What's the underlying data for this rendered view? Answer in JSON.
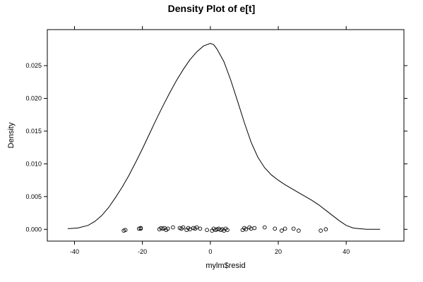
{
  "chart_data": {
    "type": "line",
    "title": "Density Plot of e[t]",
    "xlabel": "mylm$resid",
    "ylabel": "Density",
    "xlim": [
      -48,
      57
    ],
    "ylim": [
      -0.0018,
      0.0305
    ],
    "x_ticks": [
      -40,
      -20,
      0,
      20,
      40
    ],
    "x_tick_labels": [
      "-40",
      "-20",
      "0",
      "20",
      "40"
    ],
    "y_ticks": [
      0.0,
      0.005,
      0.01,
      0.015,
      0.02,
      0.025
    ],
    "y_tick_labels": [
      "0.000",
      "0.005",
      "0.010",
      "0.015",
      "0.020",
      "0.025"
    ],
    "grid": false,
    "series": [
      {
        "values_x": [
          -42,
          -39,
          -36,
          -34,
          -32,
          -30,
          -28,
          -26,
          -24,
          -22,
          -20,
          -18,
          -16,
          -14,
          -12,
          -10,
          -8,
          -6,
          -4,
          -2,
          0,
          1,
          2,
          4,
          6,
          8,
          10,
          12,
          14,
          16,
          18,
          20,
          22,
          24,
          26,
          28,
          30,
          32,
          34,
          36,
          38,
          40,
          42,
          44,
          46,
          48,
          50
        ],
        "values_y": [
          0.0001,
          0.0002,
          0.0006,
          0.0012,
          0.0021,
          0.0033,
          0.0048,
          0.0064,
          0.0082,
          0.0102,
          0.0123,
          0.0145,
          0.0167,
          0.0188,
          0.0208,
          0.0227,
          0.0244,
          0.0259,
          0.0271,
          0.028,
          0.0284,
          0.0282,
          0.0275,
          0.0256,
          0.0228,
          0.0196,
          0.0163,
          0.0133,
          0.011,
          0.0094,
          0.0083,
          0.0075,
          0.0068,
          0.0062,
          0.0056,
          0.005,
          0.0044,
          0.0037,
          0.0029,
          0.0021,
          0.0013,
          0.0006,
          0.0002,
          0.0001,
          0.0,
          0.0,
          0.0
        ]
      }
    ],
    "rug": {
      "x": [
        -25.5,
        -25,
        -21,
        -20.5,
        -20.5,
        -15,
        -14.5,
        -14,
        -13.5,
        -13,
        -12.5,
        -11,
        -9,
        -8.5,
        -8,
        -7,
        -6.5,
        -6,
        -5,
        -4.5,
        -4,
        -3,
        -1,
        0.5,
        1,
        1.5,
        2,
        2.5,
        3,
        3.5,
        4,
        4.5,
        5,
        9.5,
        10,
        10.5,
        11.5,
        12,
        13,
        16,
        19,
        21,
        22,
        24.5,
        26,
        32.5,
        34
      ],
      "y": [
        -0.0002,
        -0.0001,
        0.0001,
        0.0002,
        0.0001,
        0.0,
        0.0002,
        0.0001,
        0.0002,
        -0.0001,
        0.0001,
        0.0003,
        0.0002,
        0.0001,
        0.0003,
        -0.0001,
        0.0002,
        0.0,
        0.0002,
        0.0001,
        0.0003,
        0.0001,
        -0.0001,
        -0.0002,
        0.0001,
        -0.0001,
        0.0,
        0.0001,
        -0.0001,
        0.0,
        -0.0002,
        0.0001,
        -0.0001,
        -0.0001,
        0.0002,
        0.0,
        0.0003,
        0.0001,
        0.0002,
        0.0003,
        0.0001,
        -0.0002,
        0.0001,
        0.0001,
        -0.0002,
        -0.0002,
        0.0
      ]
    }
  }
}
